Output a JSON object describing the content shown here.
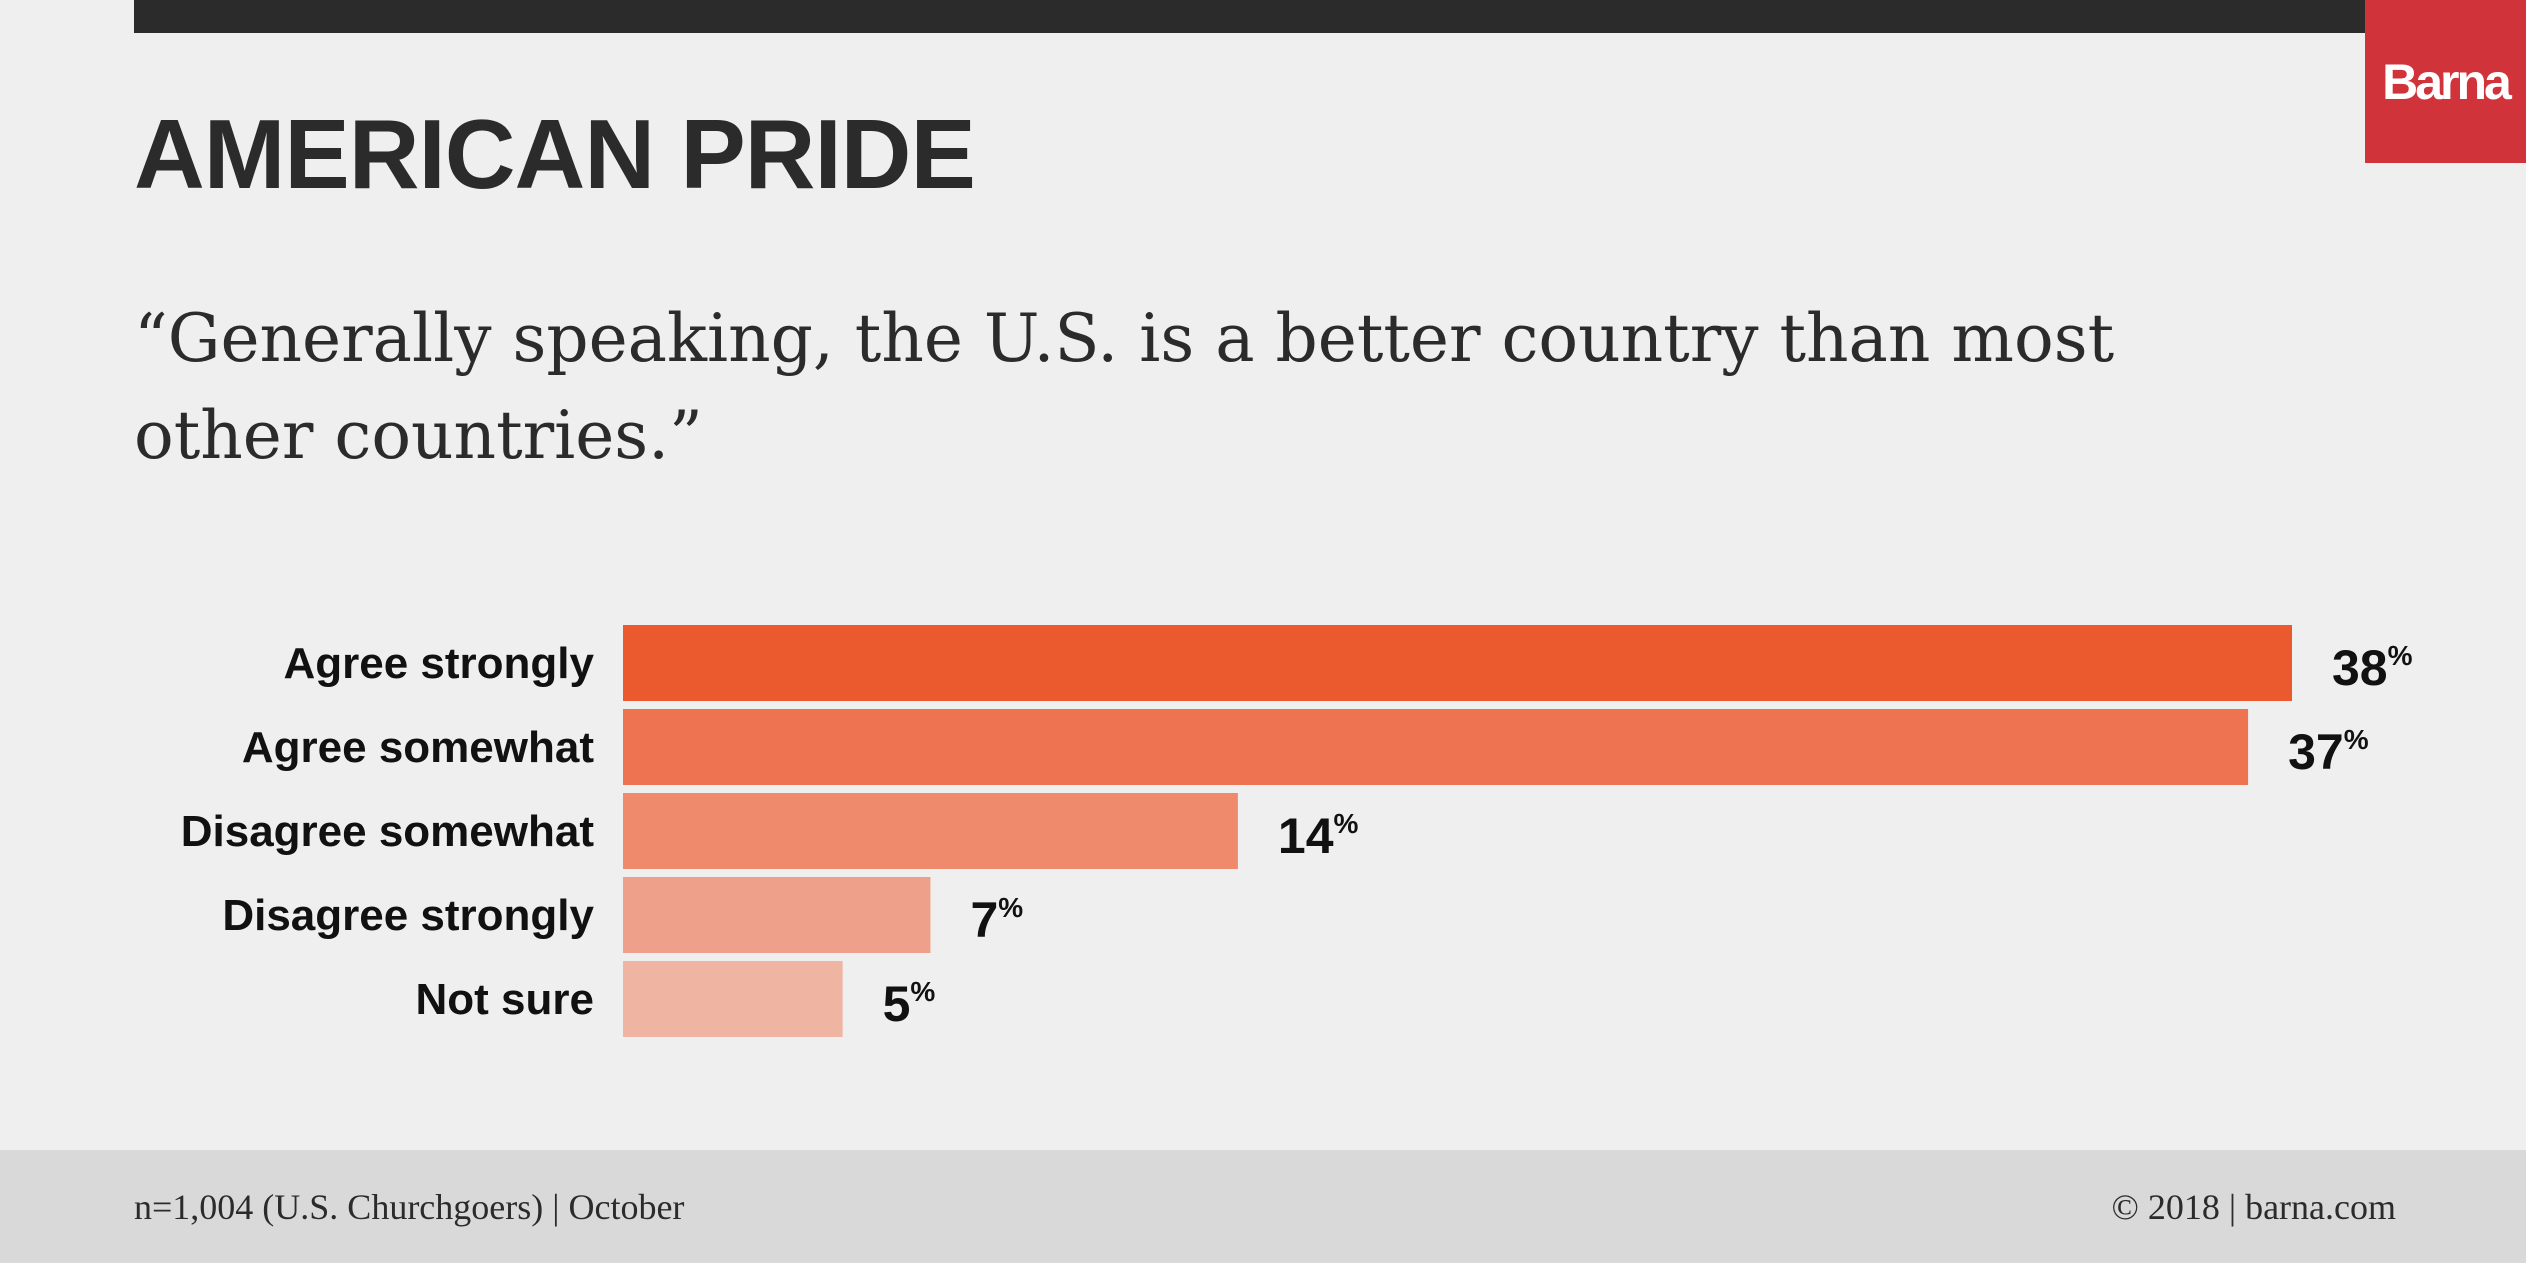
{
  "logo": "Barna",
  "title": "AMERICAN PRIDE",
  "quote": "“Generally speaking, the U.S. is a better country than most other countries.”",
  "chart_data": {
    "type": "bar",
    "orientation": "horizontal",
    "title": "AMERICAN PRIDE",
    "categories": [
      "Agree strongly",
      "Agree somewhat",
      "Disagree somewhat",
      "Disagree strongly",
      "Not sure"
    ],
    "values": [
      38,
      37,
      14,
      7,
      5
    ],
    "value_suffix": "%",
    "colors": [
      "#eb5a2e",
      "#ee7350",
      "#ef8a6c",
      "#efa08a",
      "#f0b5a2"
    ],
    "xlabel": "",
    "ylabel": "",
    "xlim": [
      0,
      38
    ],
    "grid": false
  },
  "footer": {
    "sample": "n=1,004 (U.S. Churchgoers) | October",
    "copyright": "© 2018 | barna.com"
  }
}
